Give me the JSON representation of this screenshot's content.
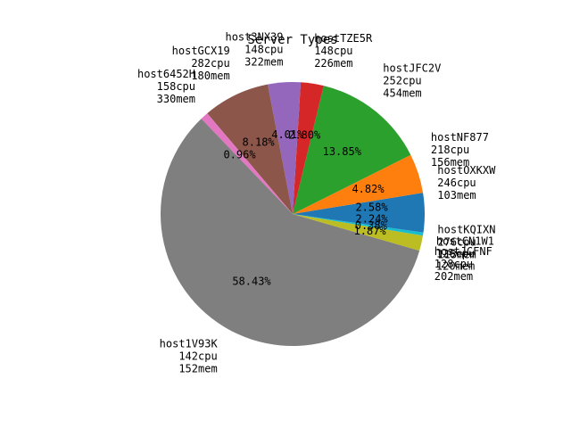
{
  "chart_data": {
    "type": "pie",
    "title": "Server Types",
    "slices": [
      {
        "name": "hostOXKXW",
        "cpu": "246cpu",
        "mem": "103mem",
        "percent": 2.58,
        "label": "2.58%",
        "color": "#1f77b4"
      },
      {
        "name": "hostNF877",
        "cpu": "218cpu",
        "mem": "156mem",
        "percent": 4.82,
        "label": "4.82%",
        "color": "#ff7f0e"
      },
      {
        "name": "hostJFC2V",
        "cpu": "252cpu",
        "mem": "454mem",
        "percent": 13.85,
        "label": "13.85%",
        "color": "#2ca02c"
      },
      {
        "name": "hostTZE5R",
        "cpu": "148cpu",
        "mem": "226mem",
        "percent": 2.8,
        "label": "2.80%",
        "color": "#d62728"
      },
      {
        "name": "host3NX39",
        "cpu": "148cpu",
        "mem": "322mem",
        "percent": 4.01,
        "label": "4.01%",
        "color": "#9467bd"
      },
      {
        "name": "hostGCX19",
        "cpu": "282cpu",
        "mem": "180mem",
        "percent": 8.18,
        "label": "8.18%",
        "color": "#8c564b"
      },
      {
        "name": "host6452H",
        "cpu": "158cpu",
        "mem": "330mem",
        "percent": 0.96,
        "label": "0.96%",
        "color": "#e377c2"
      },
      {
        "name": "host1V93K",
        "cpu": "142cpu",
        "mem": "152mem",
        "percent": 58.43,
        "label": "58.43%",
        "color": "#7f7f7f"
      },
      {
        "name": "hostJCFNF",
        "cpu": "128cpu",
        "mem": "202mem",
        "percent": 1.87,
        "label": "1.87%",
        "color": "#bcbd22"
      },
      {
        "name": "hostCN1W1",
        "cpu": "126cpu",
        "mem": "120mem",
        "percent": 0.38,
        "label": "0.38%",
        "color": "#17becf"
      },
      {
        "name": "hostKQIXN",
        "cpu": "276cpu",
        "mem": "113mem",
        "percent": 2.24,
        "label": "2.24%",
        "color": "#1f77b4"
      }
    ]
  }
}
